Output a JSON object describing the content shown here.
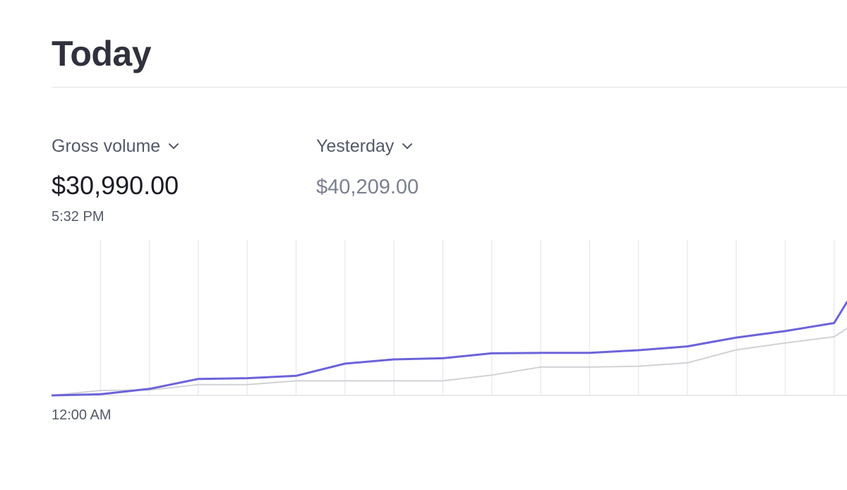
{
  "header": {
    "title": "Today"
  },
  "metric": {
    "selector_label": "Gross volume",
    "value": "$30,990.00",
    "as_of": "5:32 PM"
  },
  "comparison": {
    "selector_label": "Yesterday",
    "value": "$40,209.00"
  },
  "icons": {
    "dropdown": "chevron-down-icon"
  },
  "colors": {
    "today_line": "#6c63d9",
    "yesterday_line": "#d1d2d6",
    "gridline": "#ececef"
  },
  "chart_data": {
    "type": "line",
    "x_tick_labels": [
      "12:00 AM"
    ],
    "grid": true,
    "ylim": [
      0,
      40209
    ],
    "series": [
      {
        "name": "",
        "values": [
          0,
          300,
          1700,
          4300,
          4500,
          5100,
          8300,
          9400,
          9700,
          11000,
          11100,
          11100,
          11800,
          12800,
          15100,
          16800,
          18900,
          24400
        ]
      },
      {
        "name": "",
        "values": [
          0,
          1300,
          1400,
          2800,
          2800,
          3800,
          3800,
          3800,
          3800,
          5300,
          7400,
          7400,
          7600,
          8500,
          11900,
          13700,
          15300,
          17500
        ]
      }
    ]
  }
}
